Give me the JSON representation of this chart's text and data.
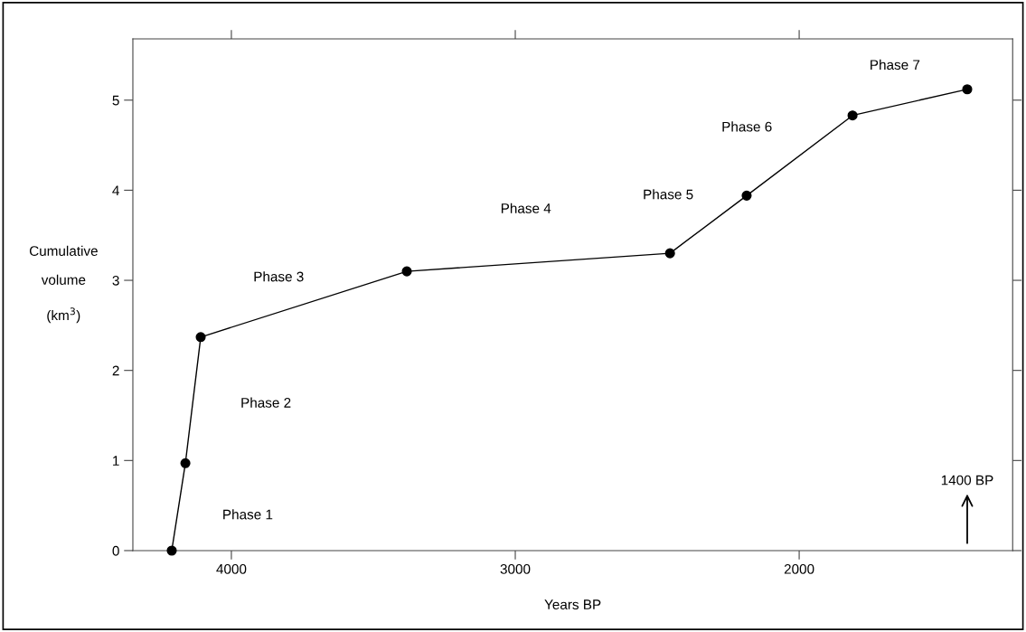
{
  "chart_data": {
    "type": "line",
    "xlabel": "Years BP",
    "ylabel": "Cumulative\nvolume\n(km$^{3}$)",
    "x": [
      4210,
      4162,
      4108,
      3382,
      2455,
      2185,
      1812,
      1408
    ],
    "series": [
      {
        "color": "#000000",
        "values": [
          0,
          0.97,
          2.37,
          3.1,
          3.3,
          3.94,
          4.83,
          5.12
        ]
      }
    ],
    "xlim": [
      4347,
      1248
    ],
    "xticks": [
      4000,
      3000,
      2000
    ],
    "ylim": [
      0,
      5.68
    ],
    "yticks": [
      0,
      1,
      2,
      3,
      4,
      5
    ],
    "marker": "circle",
    "line_style": "solid",
    "grid": false,
    "legend": false,
    "annotations": [
      "Phase 1",
      "Phase 2",
      "Phase 3",
      "Phase 4",
      "Phase 5",
      "Phase 6",
      "Phase 7",
      "1400 BP"
    ]
  }
}
